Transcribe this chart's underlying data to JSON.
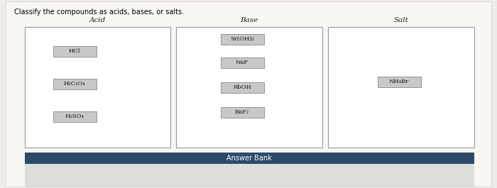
{
  "title": "Classify the compounds as acids, bases, or salts.",
  "columns": [
    "Acid",
    "Base",
    "Salt"
  ],
  "acid_compounds": [
    "HCl",
    "H₂C₂O₄",
    "H₂SO₄"
  ],
  "base_compounds": [
    "Sr(OH)₂",
    "NaF",
    "RbOH",
    "BaF₂"
  ],
  "salt_compounds": [
    "NH₄Br"
  ],
  "answer_bank_label": "Answer Bank",
  "bg_color": "#f0ede8",
  "box_bg": "#ffffff",
  "box_bg2": "#f5f5f5",
  "btn_bg": "#c8c8c8",
  "btn_border": "#888888",
  "col_border": "#999999",
  "answer_bank_bg": "#2d4a6a",
  "answer_bank_text": "#ffffff",
  "bottom_bg": "#e8eae8",
  "title_fontsize": 7,
  "col_header_fontsize": 7.5,
  "compound_fontsize": 6
}
